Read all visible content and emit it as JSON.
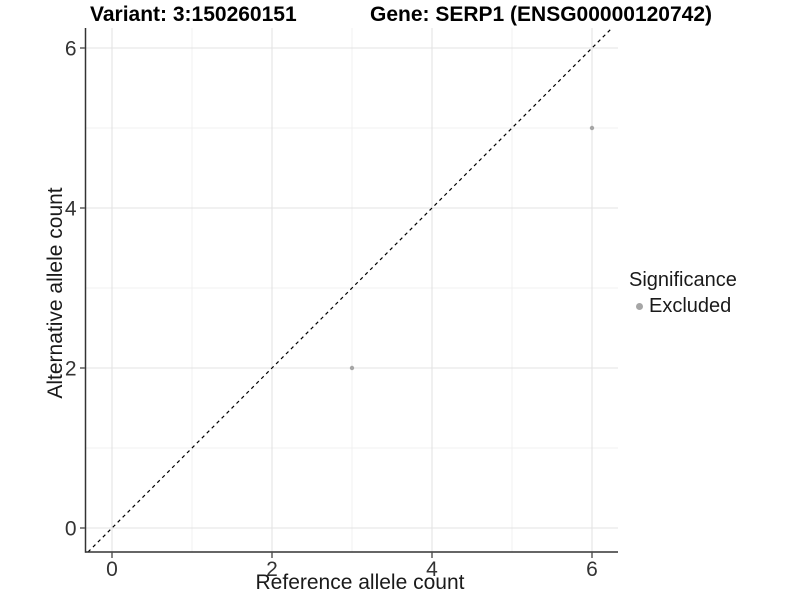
{
  "chart_data": {
    "type": "scatter",
    "title_left": "Variant: 3:150260151",
    "title_right": "Gene: SERP1 (ENSG00000120742)",
    "xlabel": "Reference allele count",
    "ylabel": "Alternative allele count",
    "xlim": [
      -0.33,
      6.33
    ],
    "ylim": [
      -0.3,
      6.25
    ],
    "x_ticks": [
      0,
      2,
      4,
      6
    ],
    "y_ticks": [
      0,
      2,
      4,
      6
    ],
    "x_minor_gridlines": [
      1,
      3,
      5
    ],
    "y_minor_gridlines": [
      1,
      3,
      5
    ],
    "grid": "major+minor",
    "identity_line": {
      "equation": "y = x",
      "style": "dashed",
      "color": "#000000"
    },
    "series": [
      {
        "name": "Excluded",
        "marker": "circle",
        "color": "#a6a6a6",
        "points": [
          [
            3,
            2
          ],
          [
            6,
            5
          ]
        ]
      }
    ],
    "legend": {
      "title": "Significance",
      "position": "right",
      "entries": [
        {
          "label": "Excluded",
          "color": "#a6a6a6"
        }
      ]
    },
    "colors": {
      "background": "#ffffff",
      "grid_major": "#e3e3e3",
      "grid_minor": "#f0f0f0",
      "axis_line": "#333333",
      "tick_mark": "#333333",
      "tick_text": "#333333",
      "point": "#a6a6a6"
    }
  }
}
